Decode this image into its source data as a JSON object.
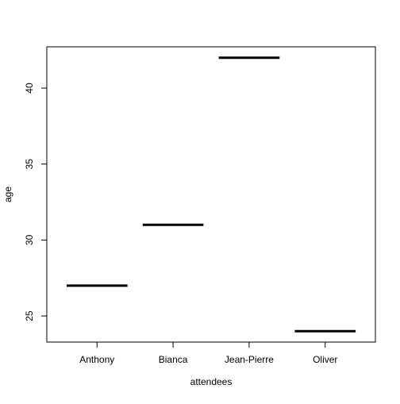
{
  "chart_data": {
    "type": "box",
    "xlabel": "attendees",
    "ylabel": "age",
    "categories": [
      "Anthony",
      "Bianca",
      "Jean-Pierre",
      "Oliver"
    ],
    "values": [
      27,
      31,
      42,
      24
    ],
    "ylim": [
      23.28,
      42.72
    ],
    "yticks": [
      25,
      30,
      35,
      40
    ],
    "yticklabels": [
      "25",
      "30",
      "35",
      "40"
    ],
    "grid": false
  }
}
